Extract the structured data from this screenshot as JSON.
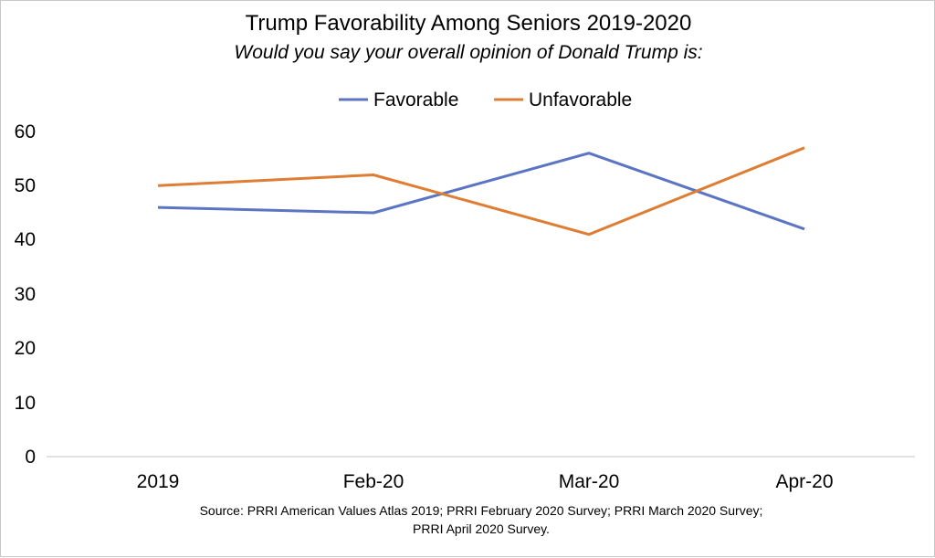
{
  "chart_data": {
    "type": "line",
    "title": "Trump Favorability Among Seniors 2019-2020",
    "subtitle": "Would you say your overall opinion of Donald Trump is:",
    "categories": [
      "2019",
      "Feb-20",
      "Mar-20",
      "Apr-20"
    ],
    "series": [
      {
        "name": "Favorable",
        "values": [
          46,
          45,
          56,
          42
        ],
        "color": "#5b75c4"
      },
      {
        "name": "Unfavorable",
        "values": [
          50,
          52,
          41,
          57
        ],
        "color": "#de7d34"
      }
    ],
    "ylim": [
      0,
      60
    ],
    "yticks": [
      0,
      10,
      20,
      30,
      40,
      50,
      60
    ],
    "xlabel": "",
    "ylabel": "",
    "grid": false,
    "legend_position": "top",
    "source_lines": [
      "Source: PRRI American Values Atlas 2019; PRRI February 2020 Survey; PRRI March 2020 Survey;",
      "PRRI April 2020 Survey."
    ]
  }
}
